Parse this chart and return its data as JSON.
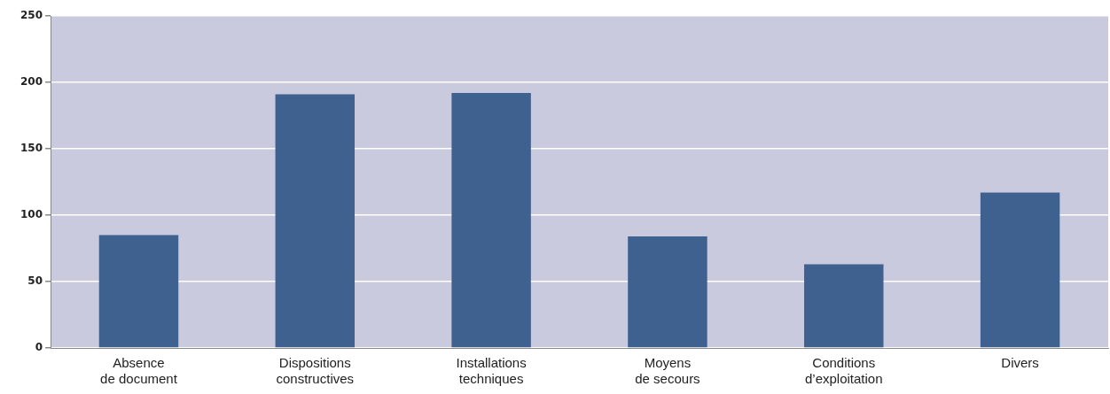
{
  "chart_data": {
    "type": "bar",
    "categories": [
      "Absence de document",
      "Dispositions constructives",
      "Installations techniques",
      "Moyens de secours",
      "Conditions d’exploitation",
      "Divers"
    ],
    "values": [
      85,
      191,
      192,
      84,
      63,
      117
    ],
    "color": "#3f6190",
    "ylim": [
      0,
      250
    ],
    "yticks": [
      0,
      50,
      100,
      150,
      200,
      250
    ],
    "grid": "y"
  }
}
